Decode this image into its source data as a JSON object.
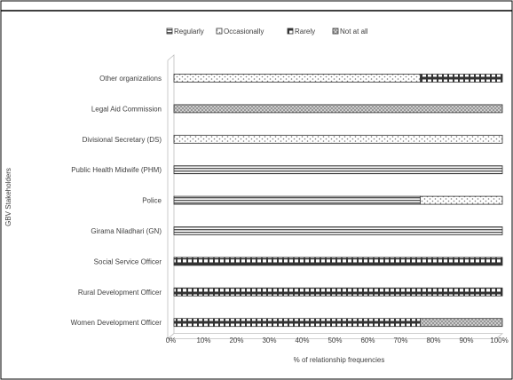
{
  "chart_data": {
    "type": "bar",
    "stacked": true,
    "orientation": "horizontal",
    "title": "",
    "xlabel": "% of relationship frequencies",
    "ylabel": "GBV Stakeholders",
    "xlim": [
      0,
      100
    ],
    "x_ticks": [
      "0%",
      "10%",
      "20%",
      "30%",
      "40%",
      "50%",
      "60%",
      "70%",
      "80%",
      "90%",
      "100%"
    ],
    "legend_position": "top",
    "grid": false,
    "categories": [
      "Other organizations",
      "Legal Aid Commission",
      "Divisional Secretary  (DS)",
      "Public Health Midwife (PHM)",
      "Police",
      "Girama Niladhari (GN)",
      "Social Service Officer",
      "Rural Development Officer",
      "Women Development Officer"
    ],
    "series": [
      {
        "name": "Regularly",
        "pattern": "hlines",
        "values": [
          0,
          0,
          0,
          100,
          75,
          100,
          0,
          0,
          0
        ]
      },
      {
        "name": "Occasionally",
        "pattern": "dots",
        "values": [
          75,
          0,
          100,
          0,
          25,
          0,
          0,
          0,
          0
        ]
      },
      {
        "name": "Rarely",
        "pattern": "bricks",
        "values": [
          25,
          0,
          0,
          0,
          0,
          0,
          100,
          100,
          75
        ]
      },
      {
        "name": "Not at all",
        "pattern": "cross",
        "values": [
          0,
          100,
          0,
          0,
          0,
          0,
          0,
          0,
          25
        ]
      }
    ]
  }
}
